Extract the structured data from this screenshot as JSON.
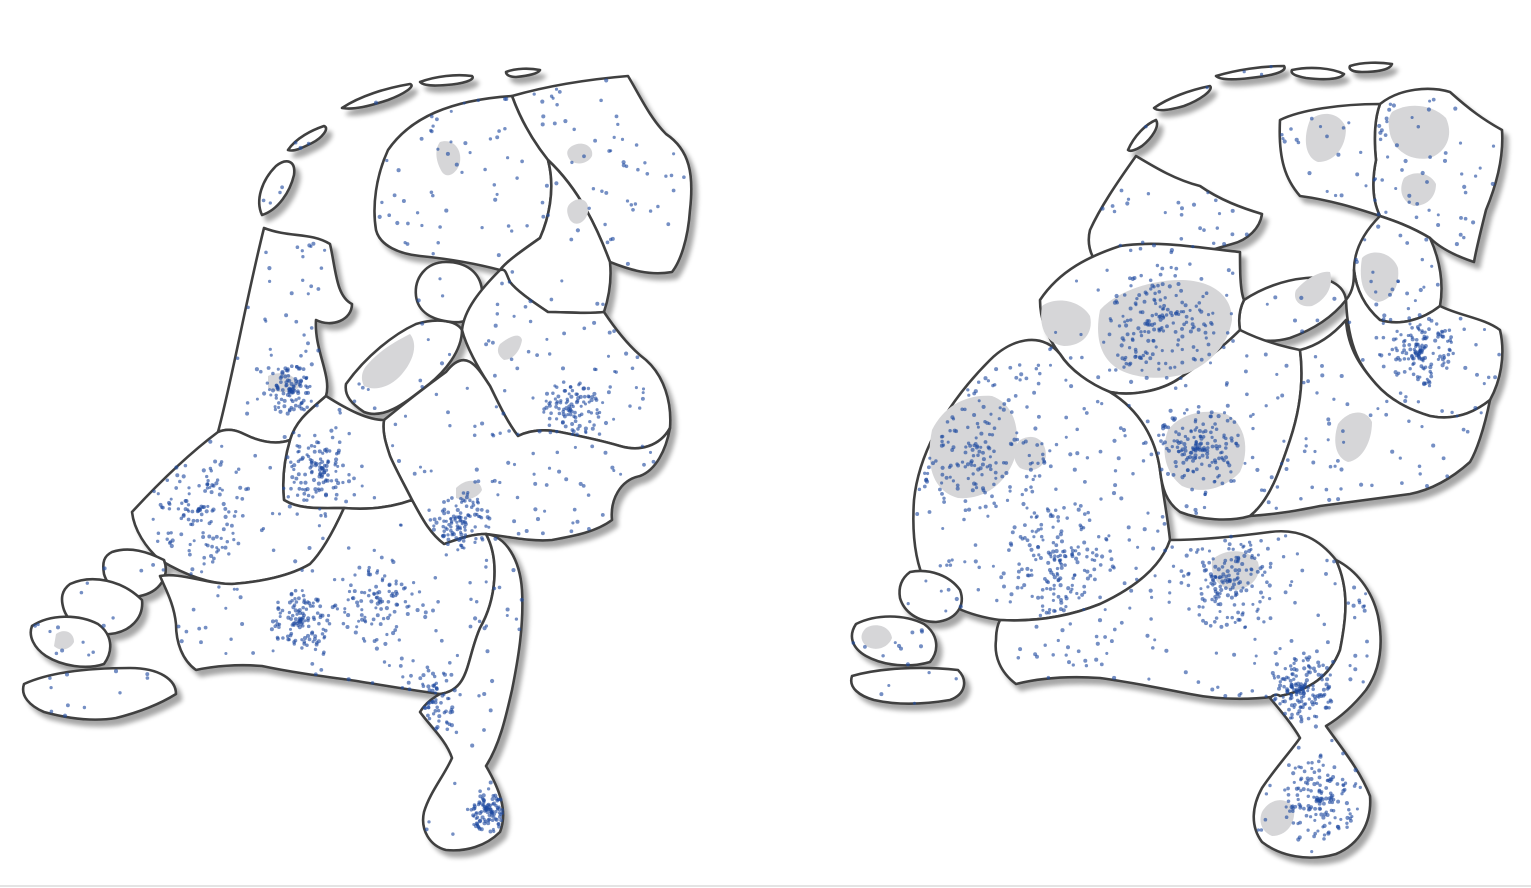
{
  "maps": [
    {
      "id": "geographic-map",
      "style": "geographic",
      "point_density": 1400
    },
    {
      "id": "cartogram-map",
      "style": "cartogram",
      "point_density": 1800
    }
  ],
  "colors": {
    "points": "#1f4aa0",
    "borders": "#404040",
    "shaded-regions": "#d6d6d8",
    "background": "#ffffff"
  },
  "icons": [
    "map-of-netherlands",
    "population-cartogram"
  ]
}
